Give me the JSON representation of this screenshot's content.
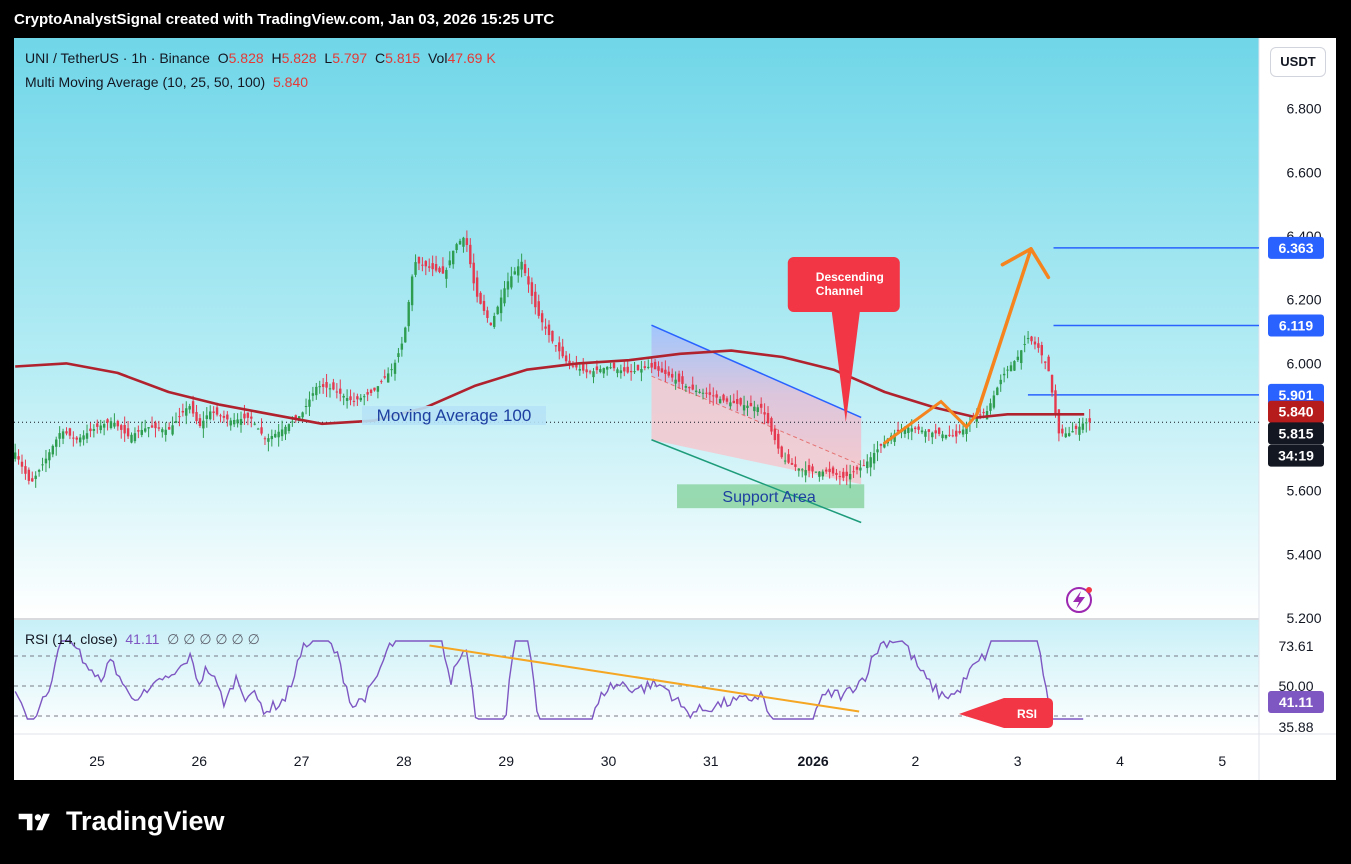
{
  "header": {
    "attribution": "CryptoAnalystSignal created with TradingView.com, Jan 03, 2026 15:25 UTC"
  },
  "legend": {
    "symbol": "UNI / TetherUS · 1h · Binance",
    "open_label": "O",
    "open": "5.828",
    "high_label": "H",
    "high": "5.828",
    "low_label": "L",
    "low": "5.797",
    "close_label": "C",
    "close": "5.815",
    "vol_label": "Vol",
    "vol": "47.69 K",
    "ma_name": "Multi Moving Average (10, 25, 50, 100)",
    "ma_value": "5.840",
    "rsi_name": "RSI (14, close)",
    "rsi_value": "41.11",
    "rsi_empty": "∅ ∅ ∅ ∅ ∅ ∅"
  },
  "currency_button": "USDT",
  "footer": {
    "brand": "TradingView"
  },
  "chart_data": [
    {
      "type": "candlestick",
      "title": "UNI / TetherUS · 1h · Binance",
      "currency": "USDT",
      "y_ticks": [
        "6.800",
        "6.600",
        "6.400",
        "6.200",
        "6.000",
        "5.600",
        "5.400",
        "5.200"
      ],
      "ylim": [
        5.2,
        6.85
      ],
      "x_ticks": [
        "25",
        "26",
        "27",
        "28",
        "29",
        "30",
        "31",
        "2026",
        "2",
        "3",
        "4",
        "5"
      ],
      "xlim": [
        24.2,
        36.4
      ],
      "price_labels": [
        {
          "value": "6.363",
          "color": "#2962ff"
        },
        {
          "value": "6.119",
          "color": "#2962ff"
        },
        {
          "value": "5.901",
          "color": "#2962ff"
        },
        {
          "value": "5.840",
          "color": "#b71c1c"
        },
        {
          "value": "5.815",
          "color": "#131722"
        },
        {
          "value": "34:19",
          "color": "#131722"
        }
      ],
      "close_series": [
        [
          24.2,
          5.72
        ],
        [
          24.35,
          5.62
        ],
        [
          24.5,
          5.7
        ],
        [
          24.65,
          5.79
        ],
        [
          24.8,
          5.76
        ],
        [
          25.0,
          5.8
        ],
        [
          25.15,
          5.82
        ],
        [
          25.3,
          5.77
        ],
        [
          25.5,
          5.8
        ],
        [
          25.7,
          5.79
        ],
        [
          25.9,
          5.87
        ],
        [
          26.0,
          5.8
        ],
        [
          26.1,
          5.85
        ],
        [
          26.3,
          5.82
        ],
        [
          26.5,
          5.83
        ],
        [
          26.65,
          5.76
        ],
        [
          26.8,
          5.79
        ],
        [
          27.0,
          5.84
        ],
        [
          27.15,
          5.93
        ],
        [
          27.3,
          5.92
        ],
        [
          27.5,
          5.88
        ],
        [
          27.7,
          5.91
        ],
        [
          27.9,
          5.99
        ],
        [
          28.0,
          6.08
        ],
        [
          28.1,
          6.32
        ],
        [
          28.25,
          6.3
        ],
        [
          28.4,
          6.28
        ],
        [
          28.5,
          6.37
        ],
        [
          28.6,
          6.4
        ],
        [
          28.7,
          6.22
        ],
        [
          28.85,
          6.12
        ],
        [
          29.0,
          6.25
        ],
        [
          29.15,
          6.32
        ],
        [
          29.3,
          6.16
        ],
        [
          29.45,
          6.07
        ],
        [
          29.6,
          6.0
        ],
        [
          29.8,
          5.97
        ],
        [
          30.0,
          5.99
        ],
        [
          30.2,
          5.97
        ],
        [
          30.4,
          5.99
        ],
        [
          30.6,
          5.96
        ],
        [
          30.8,
          5.92
        ],
        [
          31.0,
          5.9
        ],
        [
          31.15,
          5.88
        ],
        [
          31.3,
          5.87
        ],
        [
          31.5,
          5.86
        ],
        [
          31.7,
          5.7
        ],
        [
          31.85,
          5.67
        ],
        [
          32.0,
          5.66
        ],
        [
          32.15,
          5.66
        ],
        [
          32.3,
          5.64
        ],
        [
          32.5,
          5.68
        ],
        [
          32.6,
          5.72
        ],
        [
          32.75,
          5.77
        ],
        [
          32.9,
          5.8
        ],
        [
          33.05,
          5.79
        ],
        [
          33.2,
          5.78
        ],
        [
          33.4,
          5.77
        ],
        [
          33.55,
          5.82
        ],
        [
          33.7,
          5.85
        ],
        [
          33.85,
          5.96
        ],
        [
          34.0,
          6.02
        ],
        [
          34.1,
          6.08
        ],
        [
          34.2,
          6.05
        ],
        [
          34.3,
          5.98
        ],
        [
          34.4,
          5.78
        ],
        [
          34.5,
          5.78
        ],
        [
          34.6,
          5.8
        ],
        [
          34.65,
          5.815
        ]
      ],
      "annotations": [
        "Descending Channel",
        "Moving Average 100",
        "Support Area"
      ]
    },
    {
      "type": "line",
      "title": "RSI (14, close)",
      "y_ticks": [
        "73.61",
        "50.00",
        "41.11",
        "35.88"
      ],
      "levels": [
        70,
        50,
        30
      ],
      "ylim": [
        25,
        85
      ],
      "annotations": [
        "RSI"
      ]
    }
  ],
  "colors": {
    "bg_top": "#6fd6e8",
    "bg_bottom": "#ffffff",
    "candle_up": "#2e9d4f",
    "candle_down": "#e53950",
    "ma100": "#b0222e",
    "channel_line": "#2962ff",
    "channel_fill_top": "#a7c7ff",
    "channel_fill_bottom": "#f3bcc8",
    "support_fill": "#80cf97",
    "callout": "#f23645",
    "arrow": "#f5841f",
    "rsi_line": "#7e57c2",
    "trend": "#f5a623",
    "level_line": "#2962ff"
  }
}
